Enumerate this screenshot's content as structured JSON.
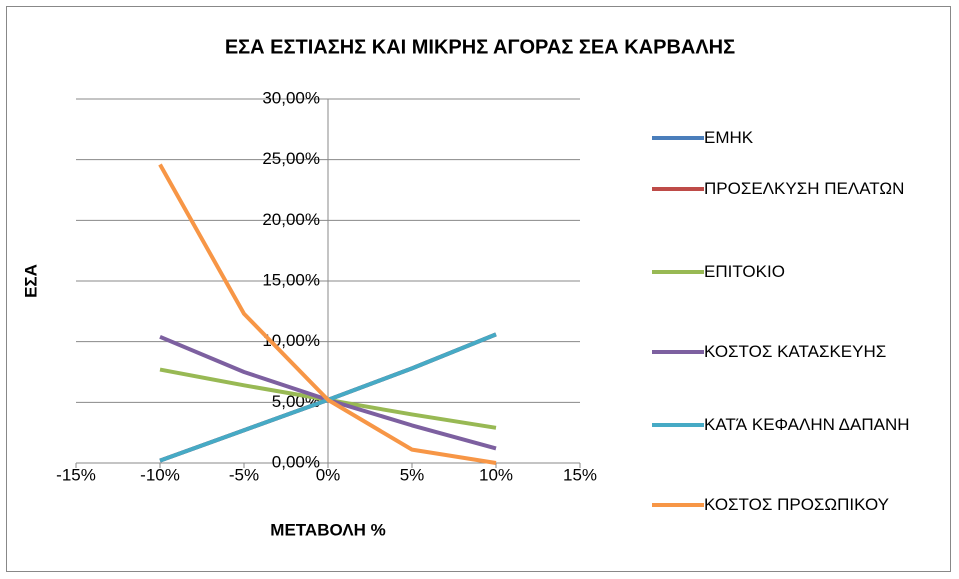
{
  "chart_data": {
    "type": "line",
    "title": "ΕΣΑ ΕΣΤΙΑΣΗΣ ΚΑΙ ΜΙΚΡΗΣ ΑΓΟΡΑΣ ΣΕΑ ΚΑΡΒΑΛΗΣ",
    "x_label": "ΜΕΤΑΒΟΛΗ %",
    "y_label": "ΕΣΑ",
    "x": [
      -10,
      -5,
      0,
      5,
      10
    ],
    "series": [
      {
        "name": "ΕΜΗΚ",
        "color": "#4a7ebb",
        "values": [
          0.2,
          2.7,
          5.2,
          7.8,
          10.6
        ]
      },
      {
        "name": "ΠΡΟΣΕΛΚΥΣΗ ΠΕΛΑΤΩΝ",
        "color": "#be4b48",
        "values": [
          0.2,
          2.7,
          5.2,
          7.8,
          10.6
        ]
      },
      {
        "name": "ΕΠΙΤΟΚΙΟ",
        "color": "#98b954",
        "values": [
          7.7,
          6.4,
          5.2,
          4.0,
          2.9
        ]
      },
      {
        "name": "ΚΟΣΤΟΣ ΚΑΤΑΣΚΕΥΗΣ",
        "color": "#7d60a0",
        "values": [
          10.4,
          7.5,
          5.2,
          3.1,
          1.2
        ]
      },
      {
        "name": "ΚΑΤΆ ΚΕΦΑΛΗΝ ΔΑΠΑΝΗ",
        "color": "#46aac5",
        "values": [
          0.2,
          2.7,
          5.2,
          7.8,
          10.6
        ]
      },
      {
        "name": "ΚΟΣΤΟΣ ΠΡΟΣΩΠΙΚΟΥ",
        "color": "#f79646",
        "values": [
          24.6,
          12.3,
          5.2,
          1.1,
          0
        ]
      }
    ],
    "xlim": [
      -15,
      15
    ],
    "xticks": [
      {
        "value": -15,
        "label": "-15%"
      },
      {
        "value": -10,
        "label": "-10%"
      },
      {
        "value": -5,
        "label": "-5%"
      },
      {
        "value": 0,
        "label": "0%"
      },
      {
        "value": 5,
        "label": "5%"
      },
      {
        "value": 10,
        "label": "10%"
      },
      {
        "value": 15,
        "label": "15%"
      }
    ],
    "ylim": [
      0,
      30
    ],
    "yticks": [
      {
        "value": 0,
        "label": "0,00%"
      },
      {
        "value": 5,
        "label": "5,00%"
      },
      {
        "value": 10,
        "label": "10,00%"
      },
      {
        "value": 15,
        "label": "15,00%"
      },
      {
        "value": 20,
        "label": "20,00%"
      },
      {
        "value": 25,
        "label": "25,00%"
      },
      {
        "value": 30,
        "label": "30,00%"
      }
    ],
    "grid": true,
    "legend": "right"
  }
}
